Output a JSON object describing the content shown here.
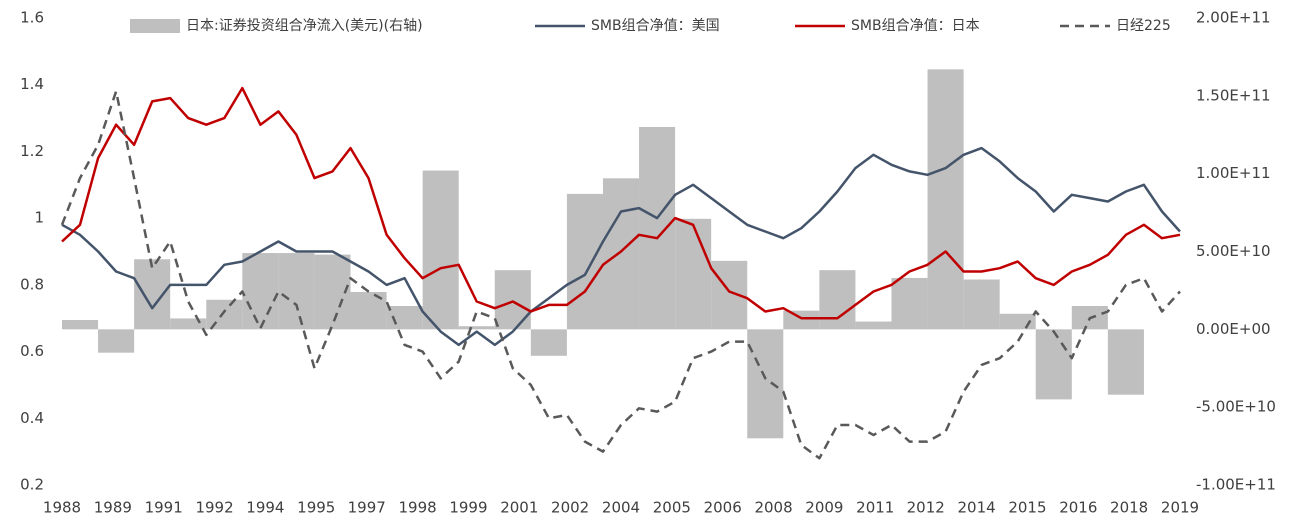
{
  "chart_data": {
    "type": "combo",
    "legend": "top",
    "grid": false,
    "xlim": [
      1988,
      2019
    ],
    "xticks": [
      {
        "value": 1988,
        "label": "1988"
      },
      {
        "value": 1989.41,
        "label": "1989"
      },
      {
        "value": 1990.82,
        "label": "1991"
      },
      {
        "value": 1992.23,
        "label": "1992"
      },
      {
        "value": 1993.64,
        "label": "1994"
      },
      {
        "value": 1995.05,
        "label": "1995"
      },
      {
        "value": 1996.45,
        "label": "1997"
      },
      {
        "value": 1997.86,
        "label": "1998"
      },
      {
        "value": 1999.27,
        "label": "1999"
      },
      {
        "value": 2000.68,
        "label": "2001"
      },
      {
        "value": 2002.09,
        "label": "2002"
      },
      {
        "value": 2003.5,
        "label": "2004"
      },
      {
        "value": 2004.91,
        "label": "2005"
      },
      {
        "value": 2006.32,
        "label": "2006"
      },
      {
        "value": 2007.73,
        "label": "2008"
      },
      {
        "value": 2009.14,
        "label": "2009"
      },
      {
        "value": 2010.55,
        "label": "2011"
      },
      {
        "value": 2011.95,
        "label": "2012"
      },
      {
        "value": 2013.36,
        "label": "2014"
      },
      {
        "value": 2014.77,
        "label": "2015"
      },
      {
        "value": 2016.18,
        "label": "2016"
      },
      {
        "value": 2017.59,
        "label": "2018"
      },
      {
        "value": 2019,
        "label": "2019"
      }
    ],
    "ylim": [
      0.2,
      1.6
    ],
    "yticks": [
      0.2,
      0.4,
      0.6,
      0.8,
      1,
      1.2,
      1.4,
      1.6
    ],
    "y2lim": [
      -100000000000,
      200000000000
    ],
    "y2ticks": [
      {
        "value": -100000000000,
        "label": "-1.00E+11"
      },
      {
        "value": -50000000000,
        "label": "-5.00E+10"
      },
      {
        "value": 0,
        "label": "0.00E+00"
      },
      {
        "value": 50000000000,
        "label": "5.00E+10"
      },
      {
        "value": 100000000000,
        "label": "1.00E+11"
      },
      {
        "value": 150000000000,
        "label": "1.50E+11"
      },
      {
        "value": 200000000000,
        "label": "2.00E+11"
      }
    ],
    "x": [
      1988,
      1988.5,
      1989,
      1989.5,
      1990,
      1990.5,
      1991,
      1991.5,
      1992,
      1992.5,
      1993,
      1993.5,
      1994,
      1994.5,
      1995,
      1995.5,
      1996,
      1996.5,
      1997,
      1997.5,
      1998,
      1998.5,
      1999,
      1999.5,
      2000,
      2000.5,
      2001,
      2001.5,
      2002,
      2002.5,
      2003,
      2003.5,
      2004,
      2004.5,
      2005,
      2005.5,
      2006,
      2006.5,
      2007,
      2007.5,
      2008,
      2008.5,
      2009,
      2009.5,
      2010,
      2010.5,
      2011,
      2011.5,
      2012,
      2012.5,
      2013,
      2013.5,
      2014,
      2014.5,
      2015,
      2015.5,
      2016,
      2016.5,
      2017,
      2017.5,
      2018,
      2018.5,
      2019
    ],
    "series": [
      {
        "name": "日本:证券投资组合净流入(美元)(右轴)",
        "type": "bar",
        "axis": "y2",
        "color": "#bfbfbf",
        "x": [
          1988,
          1989,
          1990,
          1991,
          1992,
          1993,
          1994,
          1995,
          1996,
          1997,
          1998,
          1999,
          2000,
          2001,
          2002,
          2003,
          2004,
          2005,
          2006,
          2007,
          2008,
          2009,
          2010,
          2011,
          2012,
          2013,
          2014,
          2015,
          2016,
          2017
        ],
        "values": [
          6000000000,
          -15000000000,
          45000000000,
          7000000000,
          19000000000,
          49000000000,
          49000000000,
          48000000000,
          24000000000,
          15000000000,
          102000000000,
          2000000000,
          38000000000,
          -17000000000,
          87000000000,
          97000000000,
          130000000000,
          71000000000,
          44000000000,
          -70000000000,
          12000000000,
          38000000000,
          5000000000,
          33000000000,
          167000000000,
          32000000000,
          10000000000,
          -45000000000,
          15000000000,
          -42000000000
        ]
      },
      {
        "name": "SMB组合净值：美国",
        "type": "line",
        "color": "#44546a",
        "values": [
          0.98,
          0.95,
          0.9,
          0.84,
          0.82,
          0.73,
          0.8,
          0.8,
          0.8,
          0.86,
          0.87,
          0.9,
          0.93,
          0.9,
          0.9,
          0.9,
          0.87,
          0.84,
          0.8,
          0.82,
          0.72,
          0.66,
          0.62,
          0.66,
          0.62,
          0.66,
          0.72,
          0.76,
          0.8,
          0.83,
          0.93,
          1.02,
          1.03,
          1.0,
          1.07,
          1.1,
          1.06,
          1.02,
          0.98,
          0.96,
          0.94,
          0.97,
          1.02,
          1.08,
          1.15,
          1.19,
          1.16,
          1.14,
          1.13,
          1.15,
          1.19,
          1.21,
          1.17,
          1.12,
          1.08,
          1.02,
          1.07,
          1.06,
          1.05,
          1.08,
          1.1,
          1.02,
          0.96
        ]
      },
      {
        "name": "SMB组合净值：日本",
        "type": "line",
        "color": "#c00000",
        "values": [
          0.93,
          0.98,
          1.18,
          1.28,
          1.22,
          1.35,
          1.36,
          1.3,
          1.28,
          1.3,
          1.39,
          1.28,
          1.32,
          1.25,
          1.12,
          1.14,
          1.21,
          1.12,
          0.95,
          0.88,
          0.82,
          0.85,
          0.86,
          0.75,
          0.73,
          0.75,
          0.72,
          0.74,
          0.74,
          0.78,
          0.86,
          0.9,
          0.95,
          0.94,
          1.0,
          0.98,
          0.85,
          0.78,
          0.76,
          0.72,
          0.73,
          0.7,
          0.7,
          0.7,
          0.74,
          0.78,
          0.8,
          0.84,
          0.86,
          0.9,
          0.84,
          0.84,
          0.85,
          0.87,
          0.82,
          0.8,
          0.84,
          0.86,
          0.89,
          0.95,
          0.98,
          0.94,
          0.95
        ]
      },
      {
        "name": "日经225",
        "type": "line",
        "dashed": true,
        "color": "#595959",
        "values": [
          0.98,
          1.12,
          1.22,
          1.38,
          1.12,
          0.85,
          0.93,
          0.75,
          0.65,
          0.72,
          0.78,
          0.67,
          0.78,
          0.74,
          0.55,
          0.68,
          0.82,
          0.78,
          0.75,
          0.62,
          0.6,
          0.52,
          0.57,
          0.72,
          0.7,
          0.55,
          0.5,
          0.4,
          0.41,
          0.33,
          0.3,
          0.38,
          0.43,
          0.42,
          0.45,
          0.58,
          0.6,
          0.63,
          0.63,
          0.52,
          0.48,
          0.32,
          0.28,
          0.38,
          0.38,
          0.35,
          0.38,
          0.33,
          0.33,
          0.36,
          0.48,
          0.56,
          0.58,
          0.63,
          0.72,
          0.66,
          0.58,
          0.7,
          0.72,
          0.8,
          0.82,
          0.72,
          0.78
        ]
      }
    ]
  }
}
